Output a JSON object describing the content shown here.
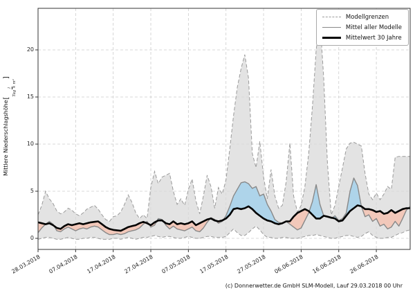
{
  "chart": {
    "footer": "(c) Donnerwetter.de GmbH SLM-Modell, Lauf 29.03.2018 00 Uhr",
    "y_axis": {
      "label": "Mittlere Niederschlagshöhe",
      "unit_numerator": "l",
      "unit_denominator": "Tag × m²",
      "ticks": [
        0,
        5,
        10,
        15,
        20
      ]
    },
    "x_axis": {
      "tick_labels": [
        "28.03.2018",
        "07.04.2018",
        "17.04.2018",
        "27.04.2018",
        "07.05.2018",
        "17.05.2018",
        "27.05.2018",
        "06.06.2018",
        "16.06.2018",
        "26.06.2018"
      ],
      "tick_days": [
        0,
        10,
        20,
        30,
        40,
        50,
        60,
        70,
        80,
        90
      ]
    },
    "legend": [
      {
        "label": "Modellgrenzen",
        "style": "dashed-gray"
      },
      {
        "label": "Mittel aller Modelle",
        "style": "solid-gray"
      },
      {
        "label": "Mittelwert 30 Jahre",
        "style": "solid-black-thick"
      }
    ],
    "colors": {
      "model_range_fill": "#d9d9d9",
      "model_range_edge": "#999999",
      "model_mean_line": "#888888",
      "climate_mean_line": "#000000",
      "above_climate_fill": "#aed4ea",
      "below_climate_fill": "#f2c8ba",
      "gridline": "#cccccc",
      "spine": "#333333"
    }
  },
  "chart_data": {
    "type": "line",
    "title": "",
    "xlabel": "",
    "ylabel": "Mittlere Niederschlagshöhe [l/(Tag × m²)]",
    "grid": "dashed, both axes",
    "legend_position": "upper right",
    "ylim": [
      -1.2,
      24.4
    ],
    "x_tick_dates": [
      "28.03.2018",
      "07.04.2018",
      "17.04.2018",
      "27.04.2018",
      "07.05.2018",
      "17.05.2018",
      "27.05.2018",
      "06.06.2018",
      "16.06.2018",
      "26.06.2018"
    ],
    "x_unit": "days after 28.03.2018, daily resolution",
    "x": [
      0,
      1,
      2,
      3,
      4,
      5,
      6,
      7,
      8,
      9,
      10,
      11,
      12,
      13,
      14,
      15,
      16,
      17,
      18,
      19,
      20,
      21,
      22,
      23,
      24,
      25,
      26,
      27,
      28,
      29,
      30,
      31,
      32,
      33,
      34,
      35,
      36,
      37,
      38,
      39,
      40,
      41,
      42,
      43,
      44,
      45,
      46,
      47,
      48,
      49,
      50,
      51,
      52,
      53,
      54,
      55,
      56,
      57,
      58,
      59,
      60,
      61,
      62,
      63,
      64,
      65,
      66,
      67,
      68,
      69,
      70,
      71,
      72,
      73,
      74,
      75,
      76,
      77,
      78,
      79,
      80,
      81,
      82,
      83,
      84,
      85,
      86,
      87,
      88,
      89,
      90,
      91,
      92,
      93,
      94,
      95,
      96,
      97,
      98,
      99
    ],
    "series": [
      {
        "name": "Modellgrenzen oberer Rand",
        "values": [
          2.5,
          3.5,
          5.0,
          4.2,
          3.7,
          2.9,
          2.6,
          2.8,
          3.2,
          3.0,
          2.6,
          2.4,
          2.7,
          3.1,
          3.3,
          3.5,
          3.1,
          2.5,
          2.0,
          1.8,
          2.3,
          2.4,
          2.8,
          3.6,
          4.6,
          3.8,
          2.7,
          2.1,
          2.5,
          2.1,
          5.4,
          7.1,
          5.8,
          6.5,
          6.7,
          6.9,
          5.0,
          3.6,
          4.2,
          3.5,
          5.2,
          6.3,
          4.0,
          2.6,
          4.5,
          6.7,
          5.5,
          3.2,
          5.4,
          4.7,
          6.2,
          9.5,
          13.0,
          16.0,
          18.0,
          19.5,
          17.0,
          9.0,
          7.5,
          10.3,
          6.5,
          4.2,
          7.3,
          4.5,
          3.2,
          3.5,
          6.0,
          10.1,
          4.5,
          2.8,
          3.5,
          5.5,
          9.0,
          14.0,
          20.0,
          23.3,
          17.0,
          8.0,
          2.5,
          3.5,
          5.5,
          7.5,
          9.5,
          10.1,
          10.2,
          10.0,
          9.8,
          6.9,
          4.7,
          4.1,
          4.8,
          4.1,
          4.7,
          5.5,
          5.2,
          8.6,
          8.7,
          8.7,
          8.7,
          8.7
        ]
      },
      {
        "name": "Modellgrenzen unterer Rand",
        "values": [
          -0.1,
          0.0,
          0.1,
          0.1,
          0.0,
          -0.1,
          -0.1,
          0.0,
          0.1,
          0.0,
          -0.1,
          -0.1,
          0.0,
          0.0,
          0.1,
          0.1,
          0.0,
          -0.1,
          -0.1,
          -0.1,
          0.0,
          0.0,
          -0.1,
          0.0,
          0.1,
          0.0,
          -0.1,
          0.0,
          0.1,
          0.1,
          0.2,
          0.3,
          0.2,
          0.1,
          0.2,
          0.2,
          0.1,
          0.0,
          0.0,
          0.1,
          0.2,
          0.1,
          0.0,
          0.0,
          0.1,
          0.2,
          0.2,
          0.1,
          0.1,
          0.1,
          0.2,
          0.6,
          1.0,
          0.6,
          0.3,
          0.3,
          0.6,
          1.0,
          1.3,
          0.9,
          0.4,
          0.1,
          0.1,
          0.0,
          0.0,
          0.1,
          0.1,
          0.0,
          0.0,
          0.0,
          0.1,
          0.2,
          0.3,
          0.3,
          0.4,
          0.3,
          0.2,
          0.1,
          0.0,
          0.0,
          0.1,
          0.2,
          0.3,
          0.3,
          0.2,
          0.1,
          0.2,
          0.5,
          0.7,
          0.3,
          0.1,
          0.0,
          0.0,
          0.1,
          0.1,
          0.3,
          0.5,
          0.6,
          0.8,
          0.9
        ]
      },
      {
        "name": "Mittel aller Modelle",
        "values": [
          0.6,
          1.1,
          1.5,
          1.8,
          1.5,
          0.8,
          0.7,
          1.0,
          1.2,
          1.0,
          0.8,
          1.0,
          1.1,
          1.0,
          1.2,
          1.3,
          1.2,
          0.9,
          0.6,
          0.4,
          0.4,
          0.5,
          0.4,
          0.5,
          0.7,
          0.8,
          0.9,
          1.1,
          1.5,
          1.8,
          1.2,
          1.4,
          2.1,
          2.0,
          1.4,
          1.0,
          1.3,
          1.0,
          0.9,
          0.8,
          1.0,
          1.2,
          0.8,
          0.7,
          1.1,
          1.7,
          2.2,
          2.0,
          1.6,
          1.8,
          2.4,
          3.4,
          4.5,
          5.2,
          5.9,
          6.0,
          5.8,
          5.3,
          5.5,
          4.5,
          4.7,
          3.6,
          2.9,
          2.0,
          1.7,
          1.6,
          1.8,
          1.5,
          1.2,
          0.9,
          1.1,
          1.9,
          2.7,
          3.9,
          5.7,
          3.6,
          2.4,
          2.3,
          2.1,
          2.4,
          1.9,
          2.1,
          2.7,
          5.0,
          6.4,
          5.6,
          3.4,
          2.3,
          2.5,
          1.8,
          2.1,
          1.3,
          1.5,
          1.0,
          1.2,
          1.8,
          1.3,
          2.1,
          3.0,
          3.4
        ]
      },
      {
        "name": "Mittelwert 30 Jahre",
        "values": [
          1.7,
          1.6,
          1.5,
          1.6,
          1.4,
          1.1,
          1.0,
          1.3,
          1.5,
          1.4,
          1.5,
          1.6,
          1.5,
          1.6,
          1.7,
          1.75,
          1.8,
          1.5,
          1.2,
          1.0,
          0.9,
          0.85,
          0.8,
          1.0,
          1.2,
          1.3,
          1.4,
          1.6,
          1.75,
          1.6,
          1.4,
          1.7,
          1.9,
          1.9,
          1.6,
          1.5,
          1.8,
          1.5,
          1.6,
          1.5,
          1.6,
          1.8,
          1.4,
          1.6,
          1.8,
          2.0,
          2.1,
          1.9,
          1.8,
          1.9,
          2.1,
          2.5,
          3.1,
          3.2,
          3.1,
          3.2,
          3.4,
          3.1,
          2.7,
          2.4,
          2.1,
          1.9,
          1.8,
          1.6,
          1.5,
          1.6,
          1.8,
          1.8,
          2.3,
          2.7,
          2.9,
          3.1,
          2.9,
          2.5,
          2.1,
          2.1,
          2.4,
          2.3,
          2.2,
          2.1,
          1.8,
          1.9,
          2.4,
          2.9,
          3.2,
          3.5,
          3.4,
          3.1,
          3.1,
          3.0,
          2.8,
          2.9,
          2.6,
          2.7,
          3.0,
          2.7,
          2.9,
          3.1,
          3.2,
          3.2
        ]
      }
    ],
    "fills": {
      "gray_band": "between Modellgrenzen oberer/unterer Rand",
      "blue": "where Mittel aller Modelle > Mittelwert 30 Jahre",
      "pink": "where Mittel aller Modelle < Mittelwert 30 Jahre"
    }
  }
}
